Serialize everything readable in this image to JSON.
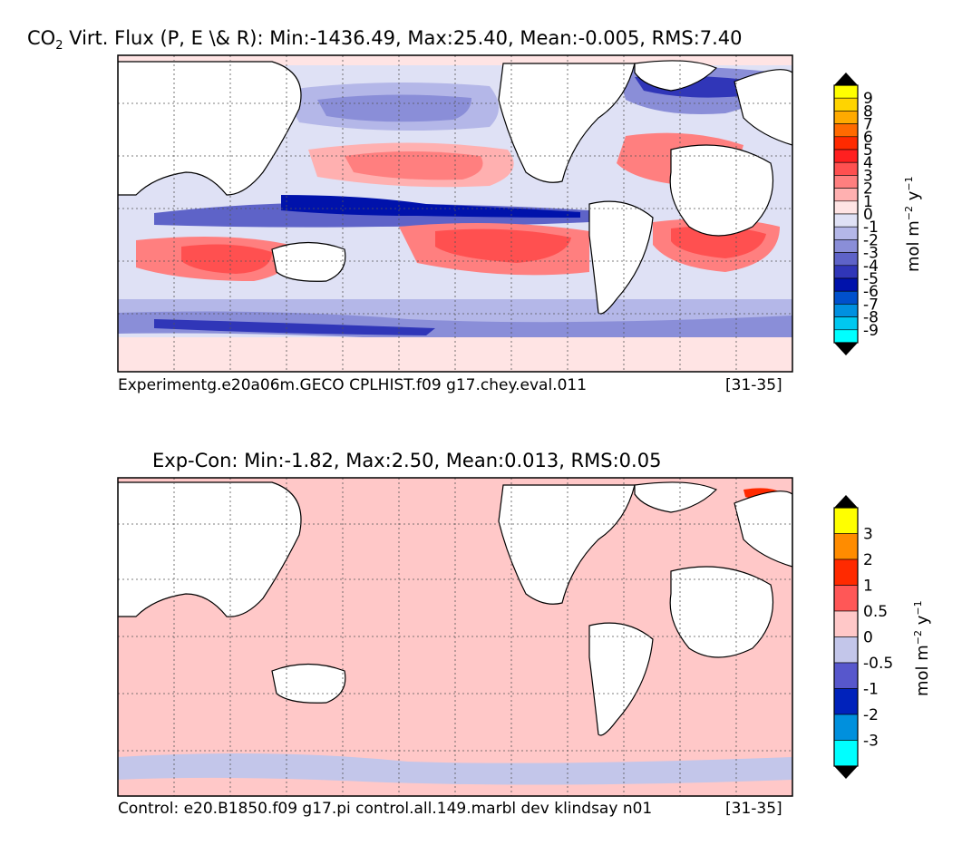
{
  "chart_data": [
    {
      "type": "heatmap",
      "title_prefix": "CO",
      "title_sub": "2",
      "title": " Virt. Flux (P, E \\& R): Min:-1436.49, Max:25.40, Mean:-0.005, RMS:7.40",
      "footer_left": "Experimentg.e20a06m.GECO CPLHIST.f09 g17.chey.eval.011",
      "footer_right": "[31-35]",
      "colorbar": {
        "label": "mol m",
        "label_exp1": "−2",
        "label_mid": " y",
        "label_exp2": "−1",
        "ticks": [
          "9",
          "8",
          "7",
          "6",
          "5",
          "4",
          "3",
          "2",
          "1",
          "0",
          "-1",
          "-2",
          "-3",
          "-4",
          "-5",
          "-6",
          "-7",
          "-8",
          "-9"
        ],
        "colors": [
          "#ffff00",
          "#ffd400",
          "#ffaa00",
          "#ff6a00",
          "#ff2a00",
          "#ff2020",
          "#ff5050",
          "#ff7f7f",
          "#ffb0b0",
          "#ffe4e4",
          "#dfe1f5",
          "#b4b7e8",
          "#8a8ed8",
          "#5e63c8",
          "#3036b8",
          "#0012ab",
          "#0050cc",
          "#0090e0",
          "#00c8f0",
          "#00ffff"
        ]
      }
    },
    {
      "type": "heatmap",
      "title": "Exp-Con: Min:-1.82, Max:2.50, Mean:0.013, RMS:0.05",
      "footer_left": "Control: e20.B1850.f09 g17.pi control.all.149.marbl dev klindsay n01",
      "footer_right": "[31-35]",
      "colorbar": {
        "label": "mol m",
        "label_exp1": "−2",
        "label_mid": " y",
        "label_exp2": "−1",
        "ticks": [
          "3",
          "2",
          "1",
          "0.5",
          "0",
          "-0.5",
          "-1",
          "-2",
          "-3"
        ],
        "colors": [
          "#ffff00",
          "#ff8c00",
          "#ff2a00",
          "#ff5757",
          "#ffc8c8",
          "#c3c6ea",
          "#5757cc",
          "#0022bb",
          "#0090dd",
          "#00ffff"
        ]
      }
    }
  ]
}
